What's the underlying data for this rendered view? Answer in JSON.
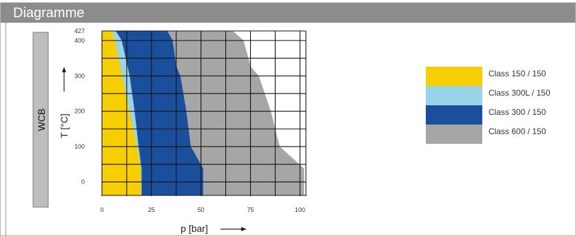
{
  "header": {
    "title": "Diagramme"
  },
  "chart_data": {
    "type": "area",
    "material": "WCB",
    "xlabel": "p [bar]",
    "ylabel": "T [°C]",
    "xlim": [
      0,
      103
    ],
    "ylim": [
      -38,
      427
    ],
    "x_ticks": [
      0,
      25,
      50,
      75,
      100
    ],
    "y_ticks": [
      0,
      100,
      200,
      300,
      400,
      427
    ],
    "grid": true,
    "legend_position": "right",
    "series": [
      {
        "name": "Class 600 / 150",
        "color": "#a6a6a6",
        "points": [
          [
            102.1,
            -38
          ],
          [
            102.1,
            38
          ],
          [
            89.8,
            100
          ],
          [
            85.3,
            200
          ],
          [
            79.2,
            300
          ],
          [
            75.2,
            325
          ],
          [
            71.5,
            400
          ],
          [
            66.0,
            427
          ]
        ]
      },
      {
        "name": "Class 300 / 150",
        "color": "#1a4f9c",
        "points": [
          [
            51.1,
            -38
          ],
          [
            51.1,
            38
          ],
          [
            44.9,
            100
          ],
          [
            42.6,
            200
          ],
          [
            39.6,
            300
          ],
          [
            37.6,
            325
          ],
          [
            35.7,
            400
          ],
          [
            33.0,
            427
          ]
        ]
      },
      {
        "name": "Class 300L / 150",
        "color": "#9ad4e8",
        "points": [
          [
            20.0,
            -38
          ],
          [
            20.0,
            38
          ],
          [
            18.5,
            100
          ],
          [
            16.5,
            200
          ],
          [
            14.0,
            300
          ],
          [
            10.0,
            400
          ],
          [
            7.0,
            427
          ]
        ]
      },
      {
        "name": "Class 150 / 150",
        "color": "#f7cf00",
        "points": [
          [
            19.6,
            -38
          ],
          [
            19.6,
            38
          ],
          [
            17.7,
            100
          ],
          [
            13.8,
            200
          ],
          [
            10.2,
            300
          ],
          [
            6.5,
            400
          ],
          [
            5.0,
            427
          ]
        ]
      }
    ]
  },
  "legend": {
    "items": [
      {
        "label": "Class 150 / 150",
        "color": "#f7cf00"
      },
      {
        "label": "Class 300L / 150",
        "color": "#9ad4e8"
      },
      {
        "label": "Class 300 / 150",
        "color": "#1a4f9c"
      },
      {
        "label": "Class 600 / 150",
        "color": "#a6a6a6"
      }
    ]
  }
}
